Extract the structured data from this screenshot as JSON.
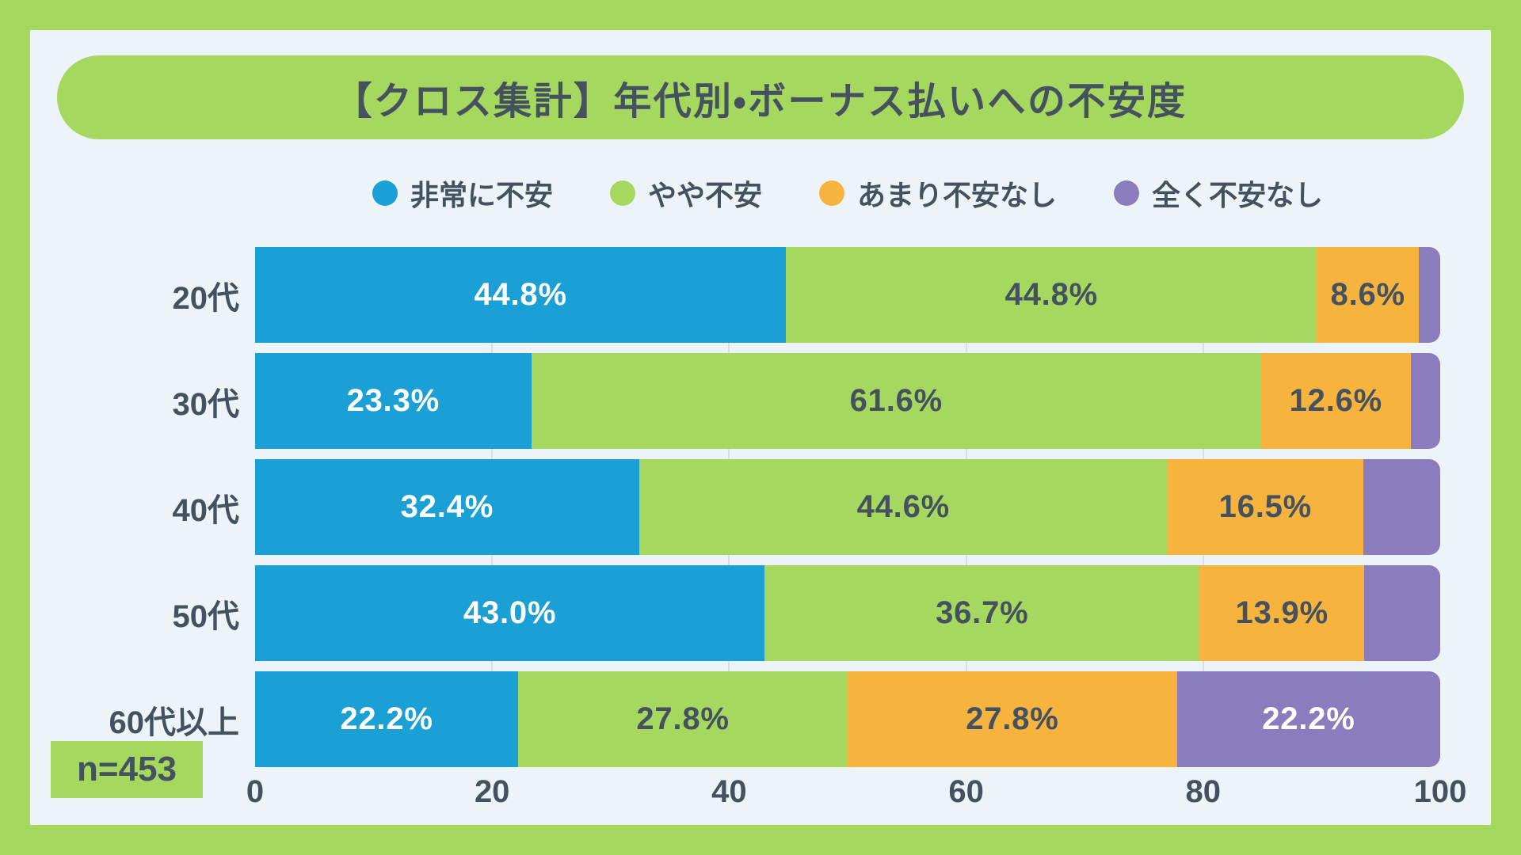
{
  "title": {
    "text": "【クロス集計】年代別・ボーナス払いへの不安度"
  },
  "sample_badge": "n=453",
  "colors": {
    "frame_green": "#a6d75e",
    "panel_background": "#edf4f9",
    "text_dark": "#44525f",
    "gridline": "#d9e0e8",
    "series_blue": "#1aa0d5",
    "series_green": "#a6d75e",
    "series_orange": "#f6b33e",
    "series_purple": "#8b7cbd"
  },
  "chart_data": {
    "type": "bar",
    "orientation": "horizontal-stacked",
    "title": "【クロス集計】年代別・ボーナス払いへの不安度",
    "legend_position": "top-center",
    "categories": [
      "20代",
      "30代",
      "40代",
      "50代",
      "60代以上"
    ],
    "series": [
      {
        "name": "非常に不安",
        "color": "#1aa0d5",
        "label_color": "#ffffff",
        "values": [
          44.8,
          23.3,
          32.4,
          43.0,
          22.2
        ],
        "labels": [
          "44.8%",
          "23.3%",
          "32.4%",
          "43.0%",
          "22.2%"
        ]
      },
      {
        "name": "やや不安",
        "color": "#a6d75e",
        "label_color": "#44525f",
        "values": [
          44.8,
          61.6,
          44.6,
          36.7,
          27.8
        ],
        "labels": [
          "44.8%",
          "61.6%",
          "44.6%",
          "36.7%",
          "27.8%"
        ]
      },
      {
        "name": "あまり不安なし",
        "color": "#f6b33e",
        "label_color": "#44525f",
        "values": [
          8.6,
          12.6,
          16.5,
          13.9,
          27.8
        ],
        "labels": [
          "8.6%",
          "12.6%",
          "16.5%",
          "13.9%",
          "27.8%"
        ]
      },
      {
        "name": "全く不安なし",
        "color": "#8b7cbd",
        "label_color": "#ffffff",
        "values": [
          1.8,
          2.5,
          6.5,
          6.4,
          22.2
        ],
        "labels": [
          "",
          "",
          "",
          "",
          "22.2%"
        ]
      }
    ],
    "xlim": [
      0,
      100
    ],
    "x_ticks": [
      0,
      20,
      40,
      60,
      80,
      100
    ],
    "grid": "vertical-at-20-40-60-80",
    "sample_note": "n=453"
  }
}
